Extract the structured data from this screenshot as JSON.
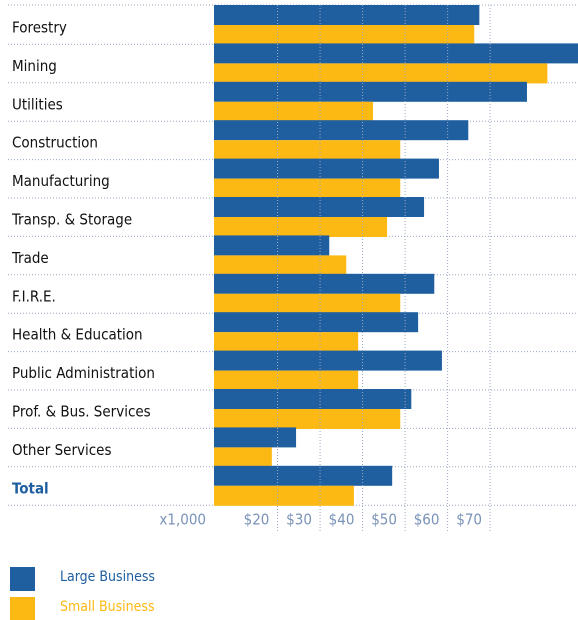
{
  "chart_data": {
    "type": "hbar",
    "categories": [
      "Forestry",
      "Mining",
      "Utilities",
      "Construction",
      "Manufacturing",
      "Transp. & Storage",
      "Trade",
      "F.I.R.E.",
      "Health & Education",
      "Public Administration",
      "Prof. & Bus. Services",
      "Other Services",
      "Total"
    ],
    "series": [
      {
        "name": "Large Business",
        "color": "#1f5fa0",
        "values": [
          72.4,
          95.6,
          83.6,
          69.8,
          62.9,
          59.4,
          37.1,
          61.8,
          58,
          63.6,
          56.4,
          29.3,
          51.9
        ]
      },
      {
        "name": "Small Business",
        "color": "#fdb913",
        "values": [
          71.2,
          88.4,
          47.4,
          53.8,
          53.8,
          50.7,
          41.1,
          53.8,
          43.9,
          43.9,
          53.8,
          23.6,
          42.9
        ]
      }
    ],
    "xlim": [
      10,
      95.6
    ],
    "xticks": [
      {
        "value": 20,
        "label": "$20"
      },
      {
        "value": 30,
        "label": "$30"
      },
      {
        "value": 40,
        "label": "$40"
      },
      {
        "value": 50,
        "label": "$50"
      },
      {
        "value": 60,
        "label": "$60"
      },
      {
        "value": 70,
        "label": "$70"
      }
    ],
    "x_unit_label": "x1,000",
    "grid": true
  }
}
